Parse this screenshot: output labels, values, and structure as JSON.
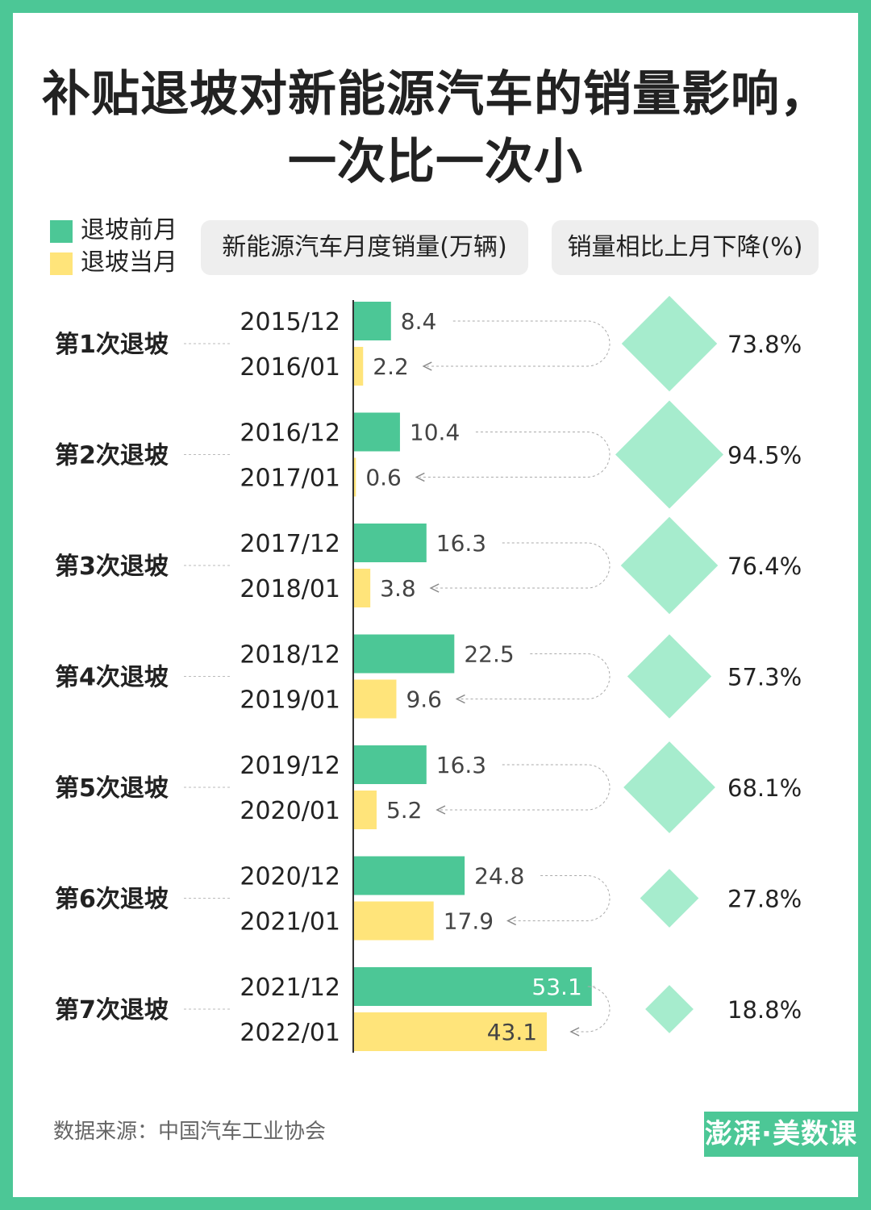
{
  "title": {
    "line1": "补贴退坡对新能源汽车的销量影响，",
    "line2": "一次比一次小"
  },
  "legend": [
    {
      "label": "退坡前月",
      "color": "#4cc796"
    },
    {
      "label": "退坡当月",
      "color": "#ffe47a"
    }
  ],
  "headers": {
    "sales": "新能源汽车月度销量(万辆)",
    "decline": "销量相比上月下降(%)"
  },
  "colors": {
    "before": "#4cc796",
    "after": "#ffe47a",
    "diamond": "#a6eccd"
  },
  "chart_data": {
    "type": "bar",
    "series": [
      {
        "name": "退坡前月",
        "key": "before"
      },
      {
        "name": "退坡当月",
        "key": "after"
      }
    ],
    "groups": [
      {
        "label": "第1次退坡",
        "before_date": "2015/12",
        "before_value": 8.4,
        "after_date": "2016/01",
        "after_value": 2.2,
        "decline_pct": 73.8,
        "decline_label": "73.8%"
      },
      {
        "label": "第2次退坡",
        "before_date": "2016/12",
        "before_value": 10.4,
        "after_date": "2017/01",
        "after_value": 0.6,
        "decline_pct": 94.5,
        "decline_label": "94.5%"
      },
      {
        "label": "第3次退坡",
        "before_date": "2017/12",
        "before_value": 16.3,
        "after_date": "2018/01",
        "after_value": 3.8,
        "decline_pct": 76.4,
        "decline_label": "76.4%"
      },
      {
        "label": "第4次退坡",
        "before_date": "2018/12",
        "before_value": 22.5,
        "after_date": "2019/01",
        "after_value": 9.6,
        "decline_pct": 57.3,
        "decline_label": "57.3%"
      },
      {
        "label": "第5次退坡",
        "before_date": "2019/12",
        "before_value": 16.3,
        "after_date": "2020/01",
        "after_value": 5.2,
        "decline_pct": 68.1,
        "decline_label": "68.1%"
      },
      {
        "label": "第6次退坡",
        "before_date": "2020/12",
        "before_value": 24.8,
        "after_date": "2021/01",
        "after_value": 17.9,
        "decline_pct": 27.8,
        "decline_label": "27.8%"
      },
      {
        "label": "第7次退坡",
        "before_date": "2021/12",
        "before_value": 53.1,
        "after_date": "2022/01",
        "after_value": 43.1,
        "decline_pct": 18.8,
        "decline_label": "18.8%"
      }
    ]
  },
  "source": "数据来源：中国汽车工业协会",
  "logo": "澎湃·美数课"
}
